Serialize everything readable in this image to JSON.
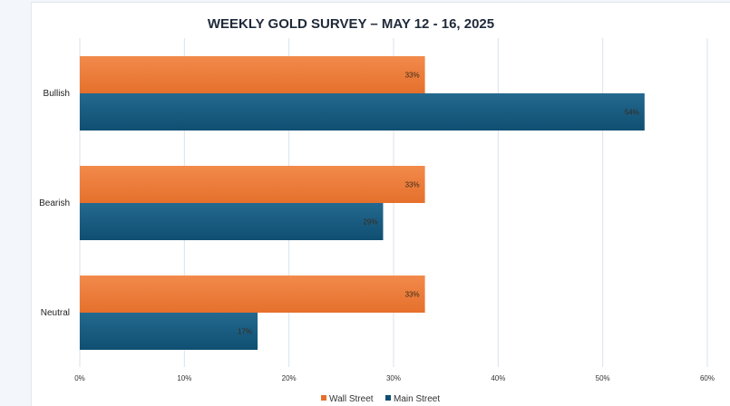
{
  "chart_data": {
    "type": "bar",
    "orientation": "horizontal",
    "title": "WEEKLY GOLD SURVEY – MAY 12 - 16, 2025",
    "categories": [
      "Bullish",
      "Bearish",
      "Neutral"
    ],
    "series": [
      {
        "name": "Wall Street",
        "values": [
          33,
          33,
          33
        ],
        "labels": [
          "33%",
          "33%",
          "33%"
        ],
        "color": "#ed7d31"
      },
      {
        "name": "Main Street",
        "values": [
          54,
          29,
          17
        ],
        "labels": [
          "54%",
          "29%",
          "17%"
        ],
        "color": "#1b5a7e"
      }
    ],
    "x_ticks": [
      "0%",
      "10%",
      "20%",
      "30%",
      "40%",
      "50%",
      "60%"
    ],
    "xlim": [
      0,
      60
    ],
    "grid": "vertical",
    "legend_position": "bottom",
    "colors": {
      "wall_street_top": "#f28a4b",
      "wall_street_bottom": "#e5702c",
      "main_street_top": "#24698f",
      "main_street_bottom": "#0f4f72",
      "grid": "#d9e1ec"
    }
  }
}
